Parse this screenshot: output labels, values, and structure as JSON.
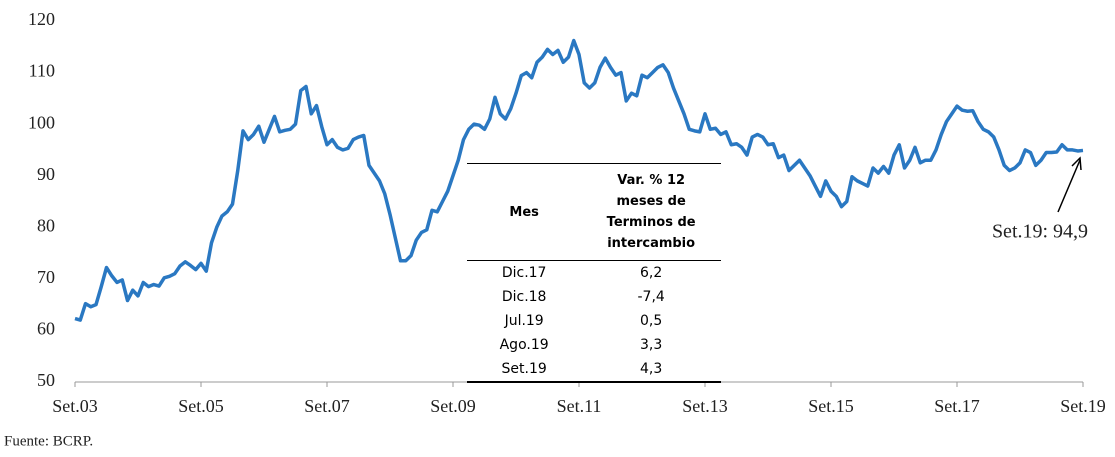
{
  "chart_data": {
    "type": "line",
    "categories": [
      "Set.03",
      null,
      null,
      null,
      null,
      null,
      null,
      null,
      null,
      null,
      null,
      null,
      null,
      null,
      null,
      null,
      null,
      null,
      null,
      null,
      null,
      null,
      null,
      null,
      "Set.05",
      null,
      null,
      null,
      null,
      null,
      null,
      null,
      null,
      null,
      null,
      null,
      null,
      null,
      null,
      null,
      null,
      null,
      null,
      null,
      null,
      null,
      null,
      null,
      "Set.07",
      null,
      null,
      null,
      null,
      null,
      null,
      null,
      null,
      null,
      null,
      null,
      null,
      null,
      null,
      null,
      null,
      null,
      null,
      null,
      null,
      null,
      null,
      null,
      "Set.09",
      null,
      null,
      null,
      null,
      null,
      null,
      null,
      null,
      null,
      null,
      null,
      null,
      null,
      null,
      null,
      null,
      null,
      null,
      null,
      null,
      null,
      null,
      null,
      "Set.11",
      null,
      null,
      null,
      null,
      null,
      null,
      null,
      null,
      null,
      null,
      null,
      null,
      null,
      null,
      null,
      null,
      null,
      null,
      null,
      null,
      null,
      null,
      null,
      "Set.13",
      null,
      null,
      null,
      null,
      null,
      null,
      null,
      null,
      null,
      null,
      null,
      null,
      null,
      null,
      null,
      null,
      null,
      null,
      null,
      null,
      null,
      null,
      null,
      "Set.15",
      null,
      null,
      null,
      null,
      null,
      null,
      null,
      null,
      null,
      null,
      null,
      null,
      null,
      null,
      null,
      null,
      null,
      null,
      null,
      null,
      null,
      null,
      null,
      "Set.17",
      null,
      null,
      null,
      null,
      null,
      null,
      null,
      null,
      null,
      null,
      null,
      null,
      null,
      null,
      null,
      null,
      null,
      null,
      null,
      null,
      null,
      null,
      null,
      "Set.19"
    ],
    "series": [
      {
        "name": "Términos de intercambio",
        "color": "#2a78c2",
        "values": [
          62.3,
          62.0,
          65.2,
          64.6,
          65.0,
          68.5,
          72.2,
          70.6,
          69.3,
          69.8,
          65.8,
          67.8,
          66.7,
          69.3,
          68.5,
          68.9,
          68.6,
          70.2,
          70.5,
          71.0,
          72.5,
          73.3,
          72.6,
          71.8,
          73.0,
          71.5,
          77.0,
          80.0,
          82.2,
          83.0,
          84.5,
          91.0,
          98.7,
          97.0,
          98.0,
          99.6,
          96.5,
          99.0,
          101.5,
          98.5,
          98.8,
          99.0,
          100.0,
          106.5,
          107.3,
          102.0,
          103.6,
          99.5,
          96.0,
          97.0,
          95.5,
          95.0,
          95.3,
          97.0,
          97.5,
          97.8,
          92.0,
          90.5,
          89.0,
          86.5,
          82.5,
          78.0,
          73.5,
          73.5,
          74.5,
          77.5,
          79.0,
          79.5,
          83.3,
          83.0,
          85.0,
          87.0,
          90.0,
          93.0,
          97.0,
          99.0,
          100.0,
          99.8,
          99.0,
          101.0,
          105.2,
          102.0,
          101.0,
          103.0,
          106.0,
          109.4,
          110.0,
          109.0,
          112.0,
          113.0,
          114.5,
          113.5,
          114.3,
          112.0,
          113.0,
          116.2,
          113.5,
          108.0,
          107.0,
          108.0,
          111.0,
          112.8,
          111.0,
          109.5,
          110.0,
          104.5,
          106.0,
          105.5,
          109.5,
          109.0,
          110.0,
          111.0,
          111.5,
          110.0,
          107.0,
          104.5,
          102.0,
          99.0,
          98.7,
          98.5,
          102.0,
          99.0,
          99.2,
          98.0,
          98.5,
          96.0,
          96.2,
          95.5,
          94.0,
          97.5,
          98.0,
          97.5,
          96.0,
          96.2,
          93.5,
          94.0,
          91.0,
          92.0,
          93.0,
          91.5,
          90.0,
          88.0,
          86.0,
          89.0,
          87.0,
          86.0,
          84.0,
          85.0,
          89.8,
          89.0,
          88.5,
          88.0,
          91.5,
          90.5,
          91.8,
          90.5,
          94.0,
          96.0,
          91.5,
          93.0,
          95.5,
          92.5,
          93.0,
          93.0,
          95.0,
          98.0,
          100.5,
          102.0,
          103.5,
          102.7,
          102.5,
          102.6,
          100.5,
          99.0,
          98.5,
          97.5,
          95.0,
          92.0,
          91.0,
          91.5,
          92.5,
          95.0,
          94.5,
          92.0,
          93.0,
          94.5,
          94.5,
          94.6,
          96.0,
          95.0,
          95.0,
          94.8,
          94.9
        ]
      }
    ],
    "ylim": [
      50,
      120
    ],
    "yticks": [
      50,
      60,
      70,
      80,
      90,
      100,
      110,
      120
    ],
    "annotation": "Set.19: 94,9",
    "source": "Fuente: BCRP.",
    "table": {
      "headers": [
        "Mes",
        "Var. % 12 meses de Terminos de intercambio"
      ],
      "rows": [
        [
          "Dic.17",
          "6,2"
        ],
        [
          "Dic.18",
          "-7,4"
        ],
        [
          "Jul.19",
          "0,5"
        ],
        [
          "Ago.19",
          "3,3"
        ],
        [
          "Set.19",
          "4,3"
        ]
      ]
    }
  }
}
